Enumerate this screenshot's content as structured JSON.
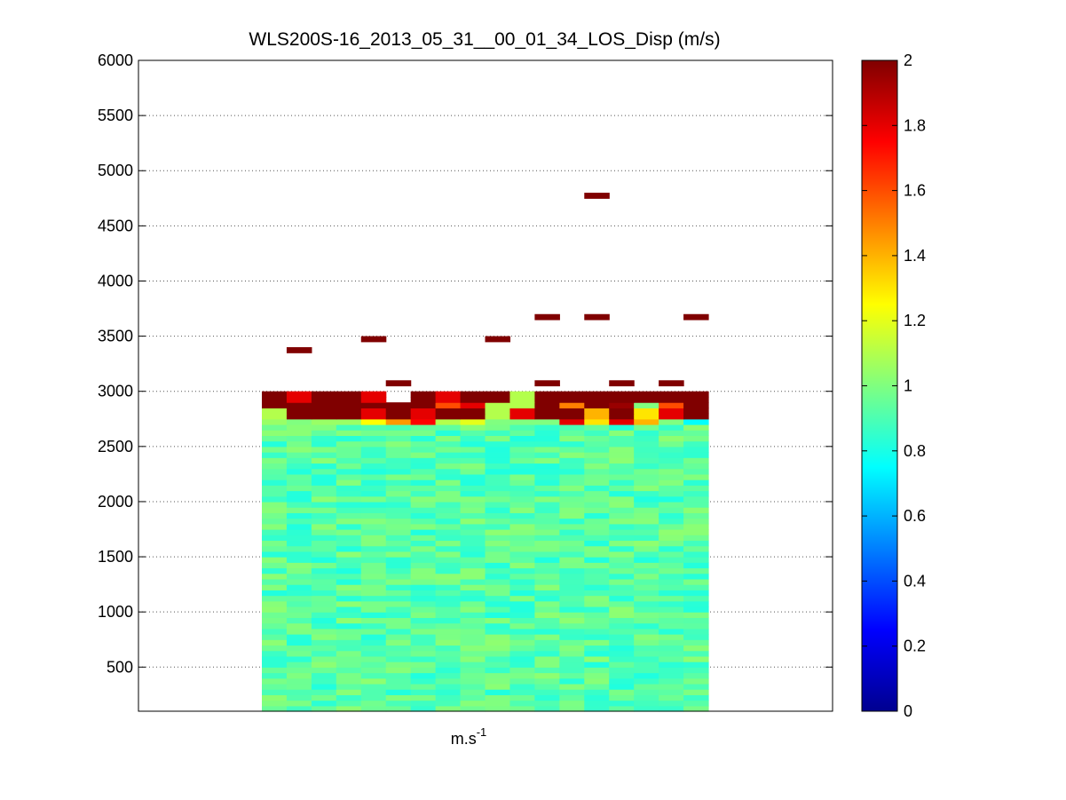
{
  "chart_data": {
    "type": "heatmap",
    "title": "WLS200S-16_2013_05_31__00_01_34_LOS_Disp (m/s)",
    "xlabel": "m.s",
    "xlabel_superscript": "-1",
    "ylabel": "",
    "ylim": [
      100,
      6000
    ],
    "yticks": [
      500,
      1000,
      1500,
      2000,
      2500,
      3000,
      3500,
      4000,
      4500,
      5000,
      5500,
      6000
    ],
    "grid": "horizontal dotted",
    "colormap": "jet",
    "clim": [
      0,
      2
    ],
    "colorbar_ticks": [
      0,
      0.2,
      0.4,
      0.6,
      0.8,
      1,
      1.2,
      1.4,
      1.6,
      1.8,
      2
    ],
    "columns": 18,
    "row_step_m": 50,
    "range_start_m": 100,
    "range_end_m": 3000,
    "bulk_range_m": [
      100,
      2700
    ],
    "bulk_mean_value": 0.92,
    "upper_rows": [
      {
        "range_m": 2700,
        "values": [
          1.05,
          1.0,
          1.05,
          1.05,
          1.25,
          1.45,
          1.75,
          1.1,
          1.2,
          1.0,
          1.0,
          1.0,
          1.8,
          1.3,
          1.8,
          1.4,
          1.0,
          0.75
        ]
      },
      {
        "range_m": 2750,
        "values": [
          1.1,
          2.0,
          2.0,
          2.0,
          1.8,
          2.0,
          1.8,
          2.0,
          2.0,
          1.1,
          1.8,
          2.0,
          2.0,
          1.4,
          2.0,
          1.3,
          1.8,
          2.0
        ]
      },
      {
        "range_m": 2800,
        "values": [
          1.1,
          2.0,
          2.0,
          2.0,
          1.8,
          2.0,
          1.8,
          2.0,
          2.0,
          1.1,
          1.8,
          2.0,
          2.0,
          1.4,
          2.0,
          1.3,
          1.8,
          2.0
        ]
      },
      {
        "range_m": 2850,
        "values": [
          2.0,
          2.0,
          2.0,
          2.0,
          2.0,
          2.0,
          2.0,
          1.6,
          1.8,
          1.1,
          1.1,
          2.0,
          1.5,
          2.0,
          1.95,
          1.0,
          1.6,
          2.0
        ]
      },
      {
        "range_m": 2900,
        "values": [
          2.0,
          1.8,
          2.0,
          2.0,
          1.8,
          null,
          2.0,
          1.8,
          2.0,
          2.0,
          1.1,
          2.0,
          2.0,
          2.0,
          2.0,
          2.0,
          2.0,
          2.0
        ]
      },
      {
        "range_m": 2950,
        "values": [
          2.0,
          1.8,
          2.0,
          2.0,
          1.8,
          null,
          2.0,
          1.8,
          2.0,
          2.0,
          1.1,
          2.0,
          2.0,
          2.0,
          2.0,
          2.0,
          2.0,
          2.0
        ]
      }
    ],
    "isolated_cells": [
      {
        "column": 2,
        "range_m": 3350,
        "value": 2.0
      },
      {
        "column": 5,
        "range_m": 3450,
        "value": 2.0
      },
      {
        "column": 6,
        "range_m": 3050,
        "value": 2.0
      },
      {
        "column": 10,
        "range_m": 3450,
        "value": 2.0
      },
      {
        "column": 12,
        "range_m": 3050,
        "value": 2.0
      },
      {
        "column": 12,
        "range_m": 3650,
        "value": 2.0
      },
      {
        "column": 14,
        "range_m": 3650,
        "value": 2.0
      },
      {
        "column": 14,
        "range_m": 4750,
        "value": 2.0
      },
      {
        "column": 15,
        "range_m": 3050,
        "value": 2.0
      },
      {
        "column": 17,
        "range_m": 3050,
        "value": 2.0
      },
      {
        "column": 18,
        "range_m": 3650,
        "value": 2.0
      }
    ]
  }
}
